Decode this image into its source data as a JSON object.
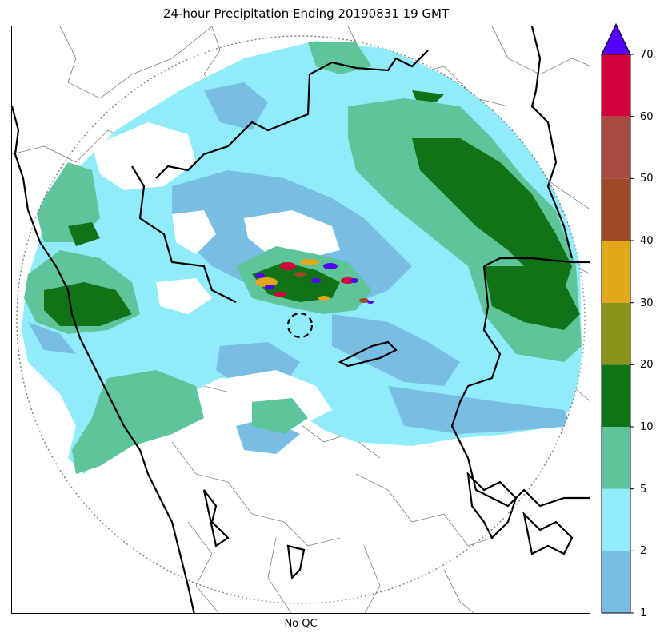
{
  "title": "24-hour Precipitation Ending 20190831 19 GMT",
  "xlabel": "No QC",
  "colors": {
    "band_1_2": "#78bde3",
    "band_2_5": "#90ecfb",
    "band_5_10": "#5ec49a",
    "band_10_20": "#107318",
    "band_20_30": "#8c9417",
    "band_30_40": "#e3a818",
    "band_40_50": "#9d4a27",
    "band_50_60": "#a84a40",
    "band_60_70": "#d4003d",
    "band_over": "#5300ff",
    "range_ring": "#808080",
    "state_border": "#000000",
    "district_border": "#555555"
  },
  "colorbar": {
    "levels": [
      "1",
      "2",
      "5",
      "10",
      "20",
      "30",
      "40",
      "50",
      "60",
      "70"
    ],
    "extend": "max",
    "bands": [
      {
        "from": "1",
        "to": "2",
        "color": "#78bde3"
      },
      {
        "from": "2",
        "to": "5",
        "color": "#90ecfb"
      },
      {
        "from": "5",
        "to": "10",
        "color": "#5ec49a"
      },
      {
        "from": "10",
        "to": "20",
        "color": "#107318"
      },
      {
        "from": "20",
        "to": "30",
        "color": "#8c9417"
      },
      {
        "from": "30",
        "to": "40",
        "color": "#e3a818"
      },
      {
        "from": "40",
        "to": "50",
        "color": "#9d4a27"
      },
      {
        "from": "50",
        "to": "60",
        "color": "#a84a40"
      },
      {
        "from": "60",
        "to": "70",
        "color": "#d4003d"
      }
    ],
    "over_color": "#5300ff"
  }
}
